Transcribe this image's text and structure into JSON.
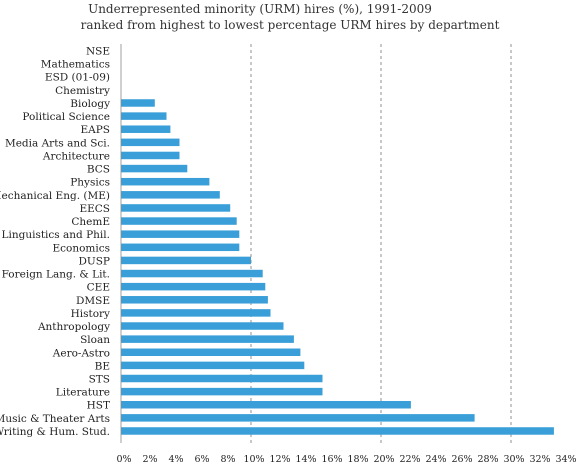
{
  "chart_data": {
    "type": "bar",
    "orientation": "horizontal",
    "title": "Underrepresented minority (URM) hires (%), 1991-2009",
    "subtitle": "ranked from highest to lowest percentage URM hires by department",
    "xlabel": "",
    "ylabel": "",
    "xlim": [
      0,
      34
    ],
    "x_ticks": [
      "0%",
      "2%",
      "4%",
      "6%",
      "8%",
      "10%",
      "12%",
      "14%",
      "16%",
      "18%",
      "20%",
      "22%",
      "24%",
      "26%",
      "28%",
      "30%",
      "32%",
      "34%"
    ],
    "gridlines_at": [
      10,
      20,
      30
    ],
    "grid_style": "dashed vertical",
    "bar_color": "#3a9fd8",
    "categories": [
      "NSE",
      "Mathematics",
      "ESD (01-09)",
      "Chemistry",
      "Biology",
      "Political Science",
      "EAPS",
      "Media Arts and Sci.",
      "Architecture",
      "BCS",
      "Physics",
      "Mechanical Eng. (ME)",
      "EECS",
      "ChemE",
      "Linguistics and Phil.",
      "Economics",
      "DUSP",
      "Foreign Lang. & Lit.",
      "CEE",
      "DMSE",
      "History",
      "Anthropology",
      "Sloan",
      "Aero-Astro",
      "BE",
      "STS",
      "Literature",
      "HST",
      "Music & Theater Arts",
      "Writing & Hum. Stud."
    ],
    "values": [
      0,
      0,
      0,
      0,
      2.6,
      3.5,
      3.8,
      4.5,
      4.5,
      5.1,
      6.8,
      7.6,
      8.4,
      8.9,
      9.1,
      9.1,
      10.0,
      10.9,
      11.1,
      11.3,
      11.5,
      12.5,
      13.3,
      13.8,
      14.1,
      15.5,
      15.5,
      22.3,
      27.2,
      33.3
    ]
  }
}
